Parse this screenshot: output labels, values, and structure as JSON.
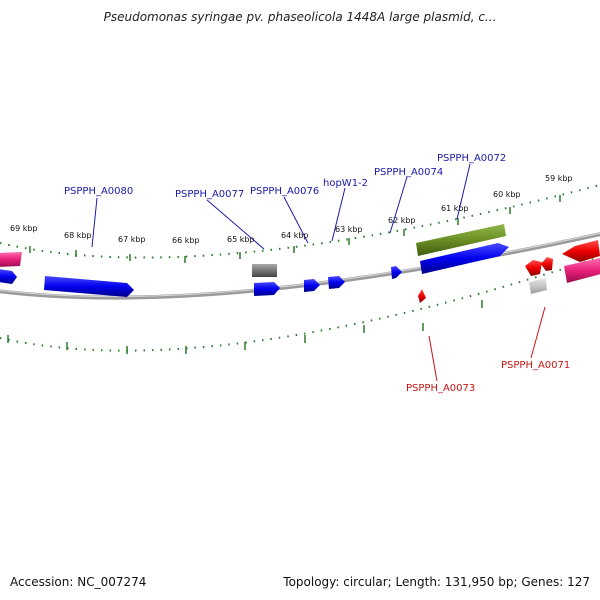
{
  "header": {
    "title": "Pseudomonas syringae pv. phaseolicola 1448A large plasmid, c..."
  },
  "footer": {
    "accession": "Accession: NC_007274",
    "summary": "Topology: circular; Length: 131,950 bp; Genes: 127"
  },
  "colors": {
    "forward_gene": "#0000ee",
    "reverse_gene": "#ee0000",
    "forward_label": "#1a1aa8",
    "reverse_label": "#c81414",
    "backbone": "#8c8c8c",
    "tick": "#2a7a2a",
    "olive_feature": "#6b8e23",
    "grey_feature": "#777777",
    "pink_feature": "#e8207a"
  },
  "tick_labels": [
    "69 kbp",
    "68 kbp",
    "67 kbp",
    "66 kbp",
    "65 kbp",
    "64 kbp",
    "63 kbp",
    "62 kbp",
    "61 kbp",
    "60 kbp",
    "59 kbp"
  ],
  "gene_labels": [
    {
      "name": "PSPPH_A0080",
      "strand": "forward"
    },
    {
      "name": "PSPPH_A0077",
      "strand": "forward"
    },
    {
      "name": "PSPPH_A0076",
      "strand": "forward"
    },
    {
      "name": "hopW1-2",
      "strand": "forward"
    },
    {
      "name": "PSPPH_A0074",
      "strand": "forward"
    },
    {
      "name": "PSPPH_A0072",
      "strand": "forward"
    },
    {
      "name": "PSPPH_A0073",
      "strand": "reverse"
    },
    {
      "name": "PSPPH_A0071",
      "strand": "reverse"
    }
  ]
}
